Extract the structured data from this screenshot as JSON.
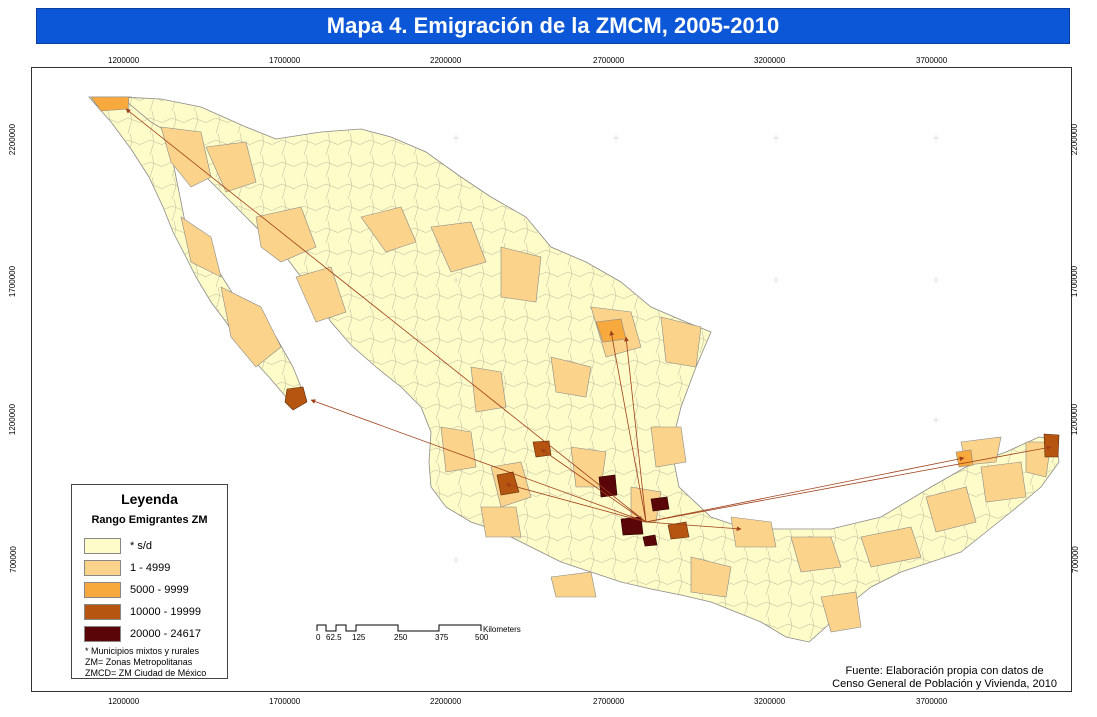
{
  "title": "Mapa 4. Emigración de la  ZMCM, 2005-2010",
  "x_ticks": [
    "1200000",
    "1700000",
    "2200000",
    "2700000",
    "3200000",
    "3700000"
  ],
  "y_ticks": [
    "2200000",
    "1700000",
    "1200000",
    "700000"
  ],
  "legend": {
    "title": "Leyenda",
    "subtitle": "Rango Emigrantes ZM",
    "classes": [
      {
        "label": "* s/d",
        "color": "#fefcc8"
      },
      {
        "label": "1 - 4999",
        "color": "#fbd38a"
      },
      {
        "label": "5000 - 9999",
        "color": "#f7a93e"
      },
      {
        "label": "10000 - 19999",
        "color": "#b5550f"
      },
      {
        "label": "20000 - 24617",
        "color": "#5a0508"
      }
    ],
    "notes": [
      "* Municipios mixtos y rurales",
      "ZM= Zonas Metropolitanas",
      "ZMCD= ZM Ciudad de México"
    ]
  },
  "scale_bar": {
    "unit": "Kilometers",
    "labels": [
      "0",
      "62.5",
      "125",
      "250",
      "375",
      "500"
    ]
  },
  "source": [
    "Fuente: Elaboración propia con datos de",
    "Censo General de Población y Vivienda, 2010"
  ],
  "colors": {
    "border": "#9a9a9a",
    "flow": "#a0401a",
    "title_bg": "#0b57d8"
  }
}
